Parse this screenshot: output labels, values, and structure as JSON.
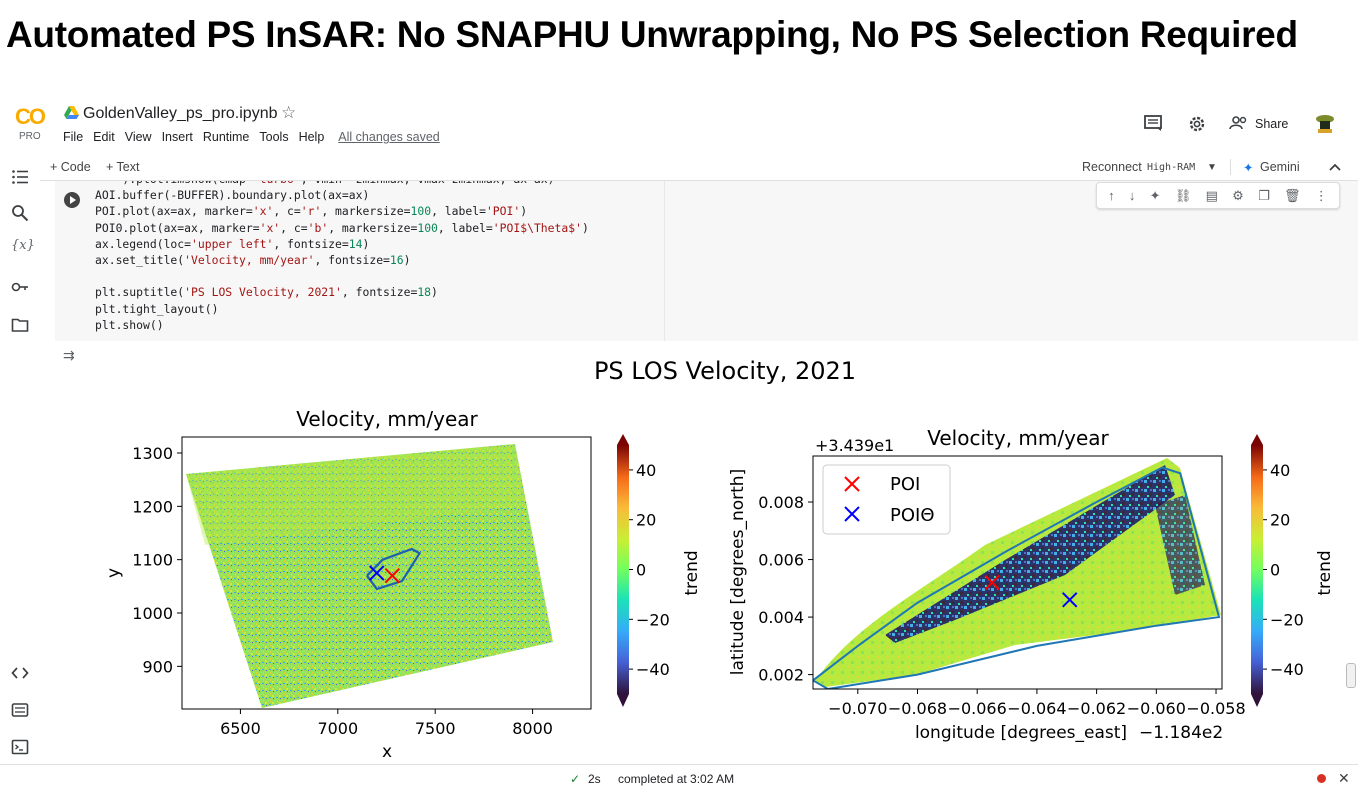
{
  "headline": "Automated PS InSAR: No SNAPHU Unwrapping, No PS Selection Required",
  "app": {
    "logo_text": "CO",
    "logo_badge": "PRO",
    "notebook_title": "GoldenValley_ps_pro.ipynb",
    "menu": [
      "File",
      "Edit",
      "View",
      "Insert",
      "Runtime",
      "Tools",
      "Help"
    ],
    "save_status": "All changes saved",
    "share_label": "Share",
    "icons": [
      "comment-icon",
      "gear-icon",
      "share-icon",
      "avatar"
    ]
  },
  "cellbar": {
    "add_code": "+ Code",
    "add_text": "+ Text",
    "reconnect": "Reconnect",
    "runtime_type": "High-RAM",
    "gemini": "Gemini"
  },
  "code_lines": [
    "    ).plot.imshow(cmap='turbo', vmin=-zminmax, vmax=zminmax, ax=ax)",
    "AOI.buffer(-BUFFER).boundary.plot(ax=ax)",
    "POI.plot(ax=ax, marker='x', c='r', markersize=100, label='POI')",
    "POI0.plot(ax=ax, marker='x', c='b', markersize=100, label='POI$\\Theta$')",
    "ax.legend(loc='upper left', fontsize=14)",
    "ax.set_title('Velocity, mm/year', fontsize=16)",
    "",
    "plt.suptitle('PS LOS Velocity, 2021', fontsize=18)",
    "plt.tight_layout()",
    "plt.show()"
  ],
  "figure": {
    "suptitle": "PS LOS Velocity, 2021",
    "colormap": "turbo",
    "color_range": [
      -50,
      50
    ]
  },
  "chart_data": [
    {
      "type": "heatmap",
      "title": "Velocity, mm/year",
      "xlabel": "x",
      "ylabel": "y",
      "xlim": [
        6200,
        8300
      ],
      "ylim": [
        820,
        1330
      ],
      "xticks": [
        "6500",
        "7000",
        "7500",
        "8000"
      ],
      "yticks": [
        "900",
        "1000",
        "1100",
        "1200",
        "1300"
      ],
      "colorbar_label": "trend",
      "colorbar_ticks": [
        "40",
        "20",
        "0",
        "−20",
        "−40"
      ],
      "markers": [
        {
          "name": "POI",
          "color": "#ff0000",
          "x": 7280,
          "y": 1070
        },
        {
          "name": "POIΘ",
          "color": "#0000ff",
          "x": 7200,
          "y": 1075
        }
      ]
    },
    {
      "type": "heatmap",
      "title": "Velocity, mm/year",
      "offset_text_y": "+3.439e1",
      "offset_text_x": "−1.184e2",
      "xlabel": "longitude [degrees_east]",
      "ylabel": "latitude [degrees_north]",
      "xlim": [
        -0.0715,
        -0.0578
      ],
      "ylim": [
        0.0015,
        0.0096
      ],
      "xticks": [
        "−0.070",
        "−0.068",
        "−0.066",
        "−0.064",
        "−0.062",
        "−0.060",
        "−0.058"
      ],
      "yticks": [
        "0.008",
        "0.006",
        "0.004",
        "0.002"
      ],
      "colorbar_label": "trend",
      "colorbar_ticks": [
        "40",
        "20",
        "0",
        "−20",
        "−40"
      ],
      "legend": {
        "loc": "upper left",
        "entries": [
          "POI",
          "POIΘ"
        ]
      },
      "markers": [
        {
          "name": "POI",
          "color": "#ff0000",
          "x": -0.0655,
          "y": 0.0052
        },
        {
          "name": "POIΘ",
          "color": "#0000ff",
          "x": -0.0629,
          "y": 0.0046
        }
      ]
    }
  ],
  "status": {
    "check": "✓",
    "elapsed": "2s",
    "completed": "completed at 3:02 AM"
  }
}
